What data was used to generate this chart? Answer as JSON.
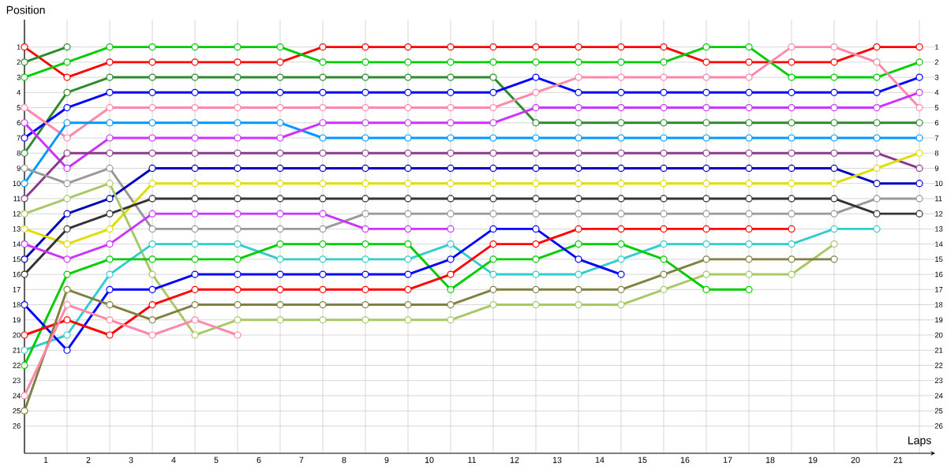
{
  "chart_data": {
    "type": "line",
    "xlabel": "Laps",
    "ylabel": "Position",
    "x": [
      0,
      1,
      2,
      3,
      4,
      5,
      6,
      7,
      8,
      9,
      10,
      11,
      12,
      13,
      14,
      15,
      16,
      17,
      18,
      19,
      20,
      21
    ],
    "xlim": [
      0,
      21.37
    ],
    "ylim": [
      27.8,
      -0.8
    ],
    "y2lim": [
      27.8,
      -0.8
    ],
    "xticks": [
      {
        "value": 0,
        "label": null
      },
      {
        "value": 1,
        "label": null
      },
      {
        "value": 2,
        "label": null
      },
      {
        "value": 3,
        "label": null
      },
      {
        "value": 4,
        "label": null
      },
      {
        "value": 5,
        "label": null
      },
      {
        "value": 6,
        "label": null
      },
      {
        "value": 7,
        "label": null
      },
      {
        "value": 8,
        "label": null
      },
      {
        "value": 9,
        "label": null
      },
      {
        "value": 10,
        "label": null
      },
      {
        "value": 11,
        "label": null
      },
      {
        "value": 12,
        "label": null
      },
      {
        "value": 13,
        "label": null
      },
      {
        "value": 14,
        "label": null
      },
      {
        "value": 15,
        "label": null
      },
      {
        "value": 16,
        "label": null
      },
      {
        "value": 17,
        "label": null
      },
      {
        "value": 18,
        "label": null
      },
      {
        "value": 19,
        "label": null
      },
      {
        "value": 20,
        "label": null
      },
      {
        "value": 21,
        "label": null
      },
      {
        "value": 0.5,
        "label": "1"
      },
      {
        "value": 1.5,
        "label": "2"
      },
      {
        "value": 2.5,
        "label": "3"
      },
      {
        "value": 3.5,
        "label": "4"
      },
      {
        "value": 4.5,
        "label": "5"
      },
      {
        "value": 5.5,
        "label": "6"
      },
      {
        "value": 6.5,
        "label": "7"
      },
      {
        "value": 7.5,
        "label": "8"
      },
      {
        "value": 8.5,
        "label": "9"
      },
      {
        "value": 9.5,
        "label": "10"
      },
      {
        "value": 10.5,
        "label": "11"
      },
      {
        "value": 11.5,
        "label": "12"
      },
      {
        "value": 12.5,
        "label": "13"
      },
      {
        "value": 13.5,
        "label": "14"
      },
      {
        "value": 14.5,
        "label": "15"
      },
      {
        "value": 15.5,
        "label": "16"
      },
      {
        "value": 16.5,
        "label": "17"
      },
      {
        "value": 17.5,
        "label": "18"
      },
      {
        "value": 18.5,
        "label": "19"
      },
      {
        "value": 19.5,
        "label": "20"
      },
      {
        "value": 20.5,
        "label": "21"
      }
    ],
    "yticks": [
      1,
      2,
      3,
      4,
      5,
      6,
      7,
      8,
      9,
      10,
      11,
      12,
      13,
      14,
      15,
      16,
      17,
      18,
      19,
      20,
      21,
      22,
      23,
      24,
      25,
      26
    ],
    "y2ticks": [
      1,
      2,
      3,
      4,
      5,
      6,
      7,
      8,
      9,
      10,
      11,
      12,
      13,
      14,
      15,
      16,
      17,
      18,
      19,
      20,
      21,
      22,
      23,
      24,
      25,
      26
    ],
    "grid": true,
    "marker": "circle",
    "line_style": "solid",
    "series": [
      {
        "color": "#ff0000",
        "values": [
          1,
          3,
          2,
          2,
          2,
          2,
          2,
          1,
          1,
          1,
          1,
          1,
          1,
          1,
          1,
          1,
          2,
          2,
          2,
          2,
          1,
          1
        ]
      },
      {
        "color": "#2a8c2a",
        "values": [
          2,
          1,
          null,
          null,
          null,
          null,
          null,
          null,
          null,
          null,
          null,
          null,
          null,
          null,
          null,
          null,
          null,
          null,
          null,
          null,
          null,
          null
        ]
      },
      {
        "color": "#00cc00",
        "values": [
          3,
          2,
          1,
          1,
          1,
          1,
          1,
          2,
          2,
          2,
          2,
          2,
          2,
          2,
          2,
          2,
          1,
          1,
          3,
          3,
          3,
          2
        ]
      },
      {
        "color": "#2a8c2a",
        "values": [
          8,
          4,
          3,
          3,
          3,
          3,
          3,
          3,
          3,
          3,
          3,
          3,
          6,
          6,
          6,
          6,
          6,
          6,
          6,
          6,
          6,
          6
        ]
      },
      {
        "color": "#0000ff",
        "values": [
          7,
          5,
          4,
          4,
          4,
          4,
          4,
          4,
          4,
          4,
          4,
          4,
          3,
          4,
          4,
          4,
          4,
          4,
          4,
          4,
          4,
          3
        ]
      },
      {
        "color": "#ff88aa",
        "values": [
          5,
          7,
          5,
          5,
          5,
          5,
          5,
          5,
          5,
          5,
          5,
          5,
          4,
          3,
          3,
          3,
          3,
          3,
          1,
          1,
          2,
          5
        ]
      },
      {
        "color": "#0099ff",
        "values": [
          10,
          6,
          6,
          6,
          6,
          6,
          6,
          7,
          7,
          7,
          7,
          7,
          7,
          7,
          7,
          7,
          7,
          7,
          7,
          7,
          7,
          7
        ]
      },
      {
        "color": "#cc33ff",
        "values": [
          6,
          9,
          7,
          7,
          7,
          7,
          7,
          6,
          6,
          6,
          6,
          6,
          5,
          5,
          5,
          5,
          5,
          5,
          5,
          5,
          5,
          4
        ]
      },
      {
        "color": "#8b3a8b",
        "values": [
          11,
          8,
          8,
          8,
          8,
          8,
          8,
          8,
          8,
          8,
          8,
          8,
          8,
          8,
          8,
          8,
          8,
          8,
          8,
          8,
          8,
          9
        ]
      },
      {
        "color": "#999999",
        "values": [
          9,
          10,
          9,
          13,
          13,
          13,
          13,
          13,
          12,
          12,
          12,
          12,
          12,
          12,
          12,
          12,
          12,
          12,
          12,
          12,
          11,
          11
        ]
      },
      {
        "color": "#0000bb",
        "values": [
          15,
          12,
          11,
          9,
          9,
          9,
          9,
          9,
          9,
          9,
          9,
          9,
          9,
          9,
          9,
          9,
          9,
          9,
          9,
          9,
          10,
          10
        ]
      },
      {
        "color": "#dddd00",
        "values": [
          13,
          14,
          13,
          10,
          10,
          10,
          10,
          10,
          10,
          10,
          10,
          10,
          10,
          10,
          10,
          10,
          10,
          10,
          10,
          10,
          9,
          8
        ]
      },
      {
        "color": "#333333",
        "values": [
          16,
          13,
          12,
          11,
          11,
          11,
          11,
          11,
          11,
          11,
          11,
          11,
          11,
          11,
          11,
          11,
          11,
          11,
          11,
          11,
          12,
          12
        ]
      },
      {
        "color": "#a8c866",
        "values": [
          12,
          11,
          10,
          16,
          20,
          19,
          19,
          19,
          19,
          19,
          19,
          18,
          18,
          18,
          18,
          17,
          16,
          16,
          16,
          14,
          null,
          null
        ]
      },
      {
        "color": "#cc33ff",
        "values": [
          14,
          15,
          14,
          12,
          12,
          12,
          12,
          12,
          13,
          13,
          13,
          null,
          null,
          null,
          null,
          null,
          null,
          null,
          null,
          null,
          null,
          null
        ]
      },
      {
        "color": "#33cccc",
        "values": [
          21,
          20,
          16,
          14,
          14,
          14,
          15,
          15,
          15,
          15,
          14,
          16,
          16,
          16,
          15,
          14,
          14,
          14,
          14,
          13,
          13,
          null
        ]
      },
      {
        "color": "#00cc00",
        "values": [
          22,
          16,
          15,
          15,
          15,
          15,
          14,
          14,
          14,
          14,
          17,
          15,
          15,
          14,
          14,
          15,
          17,
          17,
          null,
          null,
          null,
          null
        ]
      },
      {
        "color": "#0000ff",
        "values": [
          18,
          21,
          17,
          17,
          16,
          16,
          16,
          16,
          16,
          16,
          15,
          13,
          13,
          15,
          16,
          null,
          null,
          null,
          null,
          null,
          null,
          null
        ]
      },
      {
        "color": "#ff0000",
        "values": [
          20,
          19,
          20,
          18,
          17,
          17,
          17,
          17,
          17,
          17,
          16,
          14,
          14,
          13,
          13,
          13,
          13,
          13,
          13,
          null,
          null,
          null
        ]
      },
      {
        "color": "#808040",
        "values": [
          25,
          17,
          18,
          19,
          18,
          18,
          18,
          18,
          18,
          18,
          18,
          17,
          17,
          17,
          17,
          16,
          15,
          15,
          15,
          15,
          null,
          null
        ]
      },
      {
        "color": "#ff88aa",
        "values": [
          24,
          18,
          19,
          20,
          19,
          20,
          null,
          null,
          null,
          null,
          null,
          null,
          null,
          null,
          null,
          null,
          null,
          null,
          null,
          null,
          null,
          null
        ]
      }
    ]
  }
}
